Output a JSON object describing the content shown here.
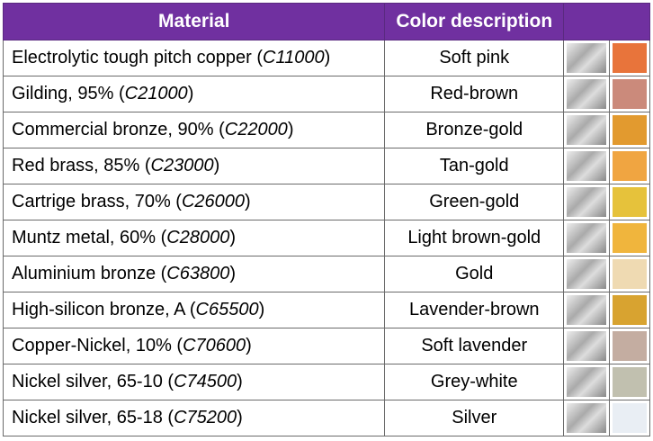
{
  "table": {
    "header": [
      "Material",
      "Color description"
    ],
    "rows": [
      {
        "name": "Electrolytic tough pitch copper (",
        "code": "C11000",
        "close": ")",
        "color": "Soft pink",
        "swatch": "#e8743b"
      },
      {
        "name": "Gilding, 95% (",
        "code": "C21000",
        "close": ")",
        "color": "Red-brown",
        "swatch": "#cb8a7b"
      },
      {
        "name": "Commercial bronze, 90% (",
        "code": "C22000",
        "close": ")",
        "color": "Bronze-gold",
        "swatch": "#e29a2f"
      },
      {
        "name": "Red brass, 85% (",
        "code": "C23000",
        "close": ")",
        "color": "Tan-gold",
        "swatch": "#f0a541"
      },
      {
        "name": "Cartrige brass, 70% (",
        "code": "C26000",
        "close": ")",
        "color": "Green-gold",
        "swatch": "#e6c23b"
      },
      {
        "name": "Muntz metal, 60% (",
        "code": "C28000",
        "close": ")",
        "color": "Light brown-gold",
        "swatch": "#f0b53d"
      },
      {
        "name": "Aluminium bronze (",
        "code": "C63800",
        "close": ")",
        "color": "Gold",
        "swatch": "#efdab2"
      },
      {
        "name": "High-silicon bronze, A (",
        "code": "C65500",
        "close": ")",
        "color": "Lavender-brown",
        "swatch": "#d8a330"
      },
      {
        "name": "Copper-Nickel, 10% (",
        "code": "C70600",
        "close": ")",
        "color": "Soft lavender",
        "swatch": "#c4ada1"
      },
      {
        "name": "Nickel silver, 65-10 (",
        "code": "C74500",
        "close": ")",
        "color": "Grey-white",
        "swatch": "#c1c0af"
      },
      {
        "name": "Nickel silver, 65-18 (",
        "code": "C75200",
        "close": ")",
        "color": "Silver",
        "swatch": "#e9eef4"
      }
    ]
  }
}
